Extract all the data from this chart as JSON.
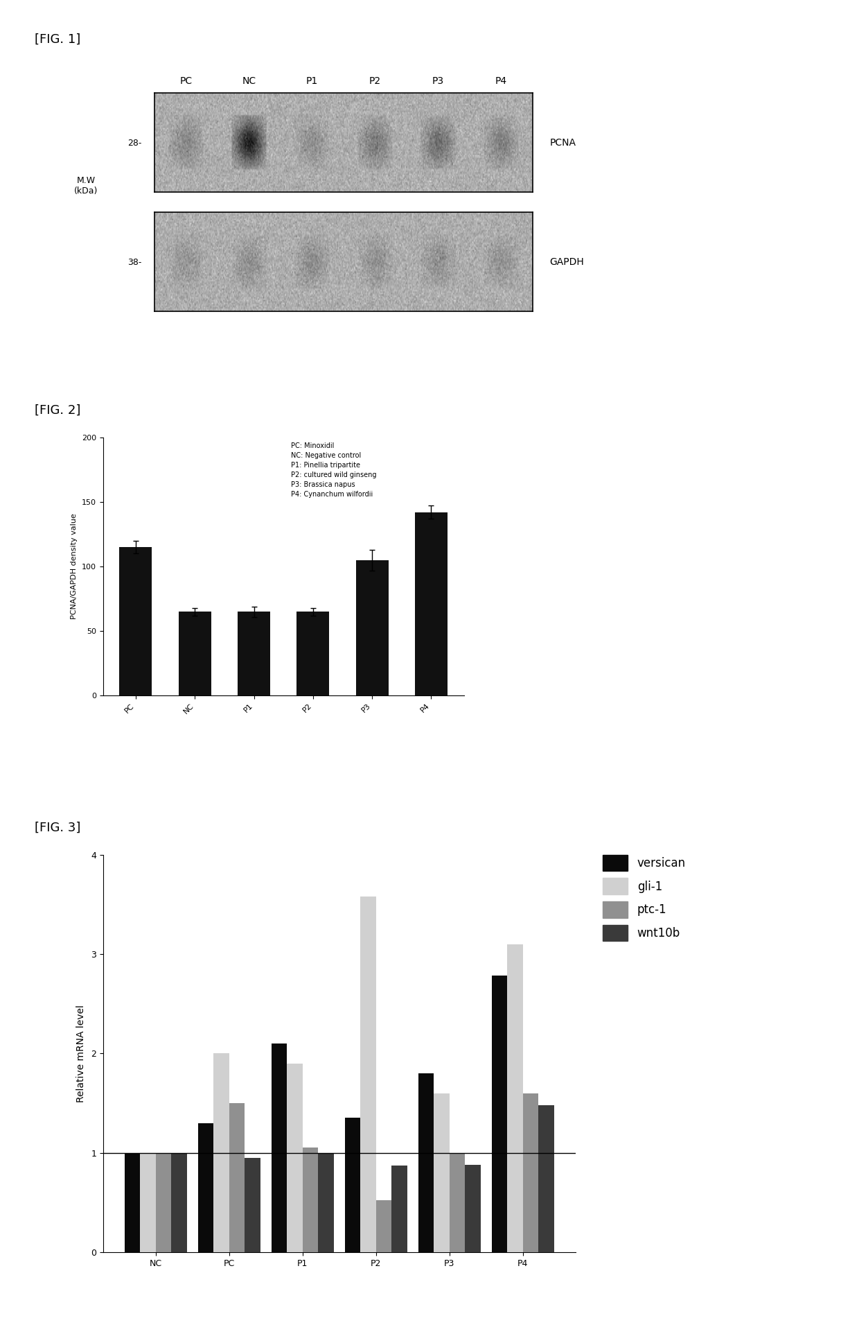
{
  "fig1_label": "[FIG. 1]",
  "fig2_label": "[FIG. 2]",
  "fig3_label": "[FIG. 3]",
  "fig1_lane_labels": [
    "PC",
    "NC",
    "P1",
    "P2",
    "P3",
    "P4"
  ],
  "fig1_mw_label": "M.W\n(kDa)",
  "fig1_pcna_mw": "28-",
  "fig1_gapdh_mw": "38-",
  "fig1_pcna_label": "PCNA",
  "fig1_gapdh_label": "GAPDH",
  "fig1_pcna_bands": [
    0.15,
    0.55,
    0.12,
    0.2,
    0.25,
    0.18
  ],
  "fig1_gapdh_bands": [
    0.1,
    0.12,
    0.13,
    0.11,
    0.12,
    0.11
  ],
  "fig2_categories": [
    "PC",
    "NC",
    "P1",
    "P2",
    "P3",
    "P4"
  ],
  "fig2_values": [
    115,
    65,
    65,
    65,
    105,
    142
  ],
  "fig2_errors": [
    5,
    3,
    4,
    3,
    8,
    5
  ],
  "fig2_ylabel": "PCNA/GAPDH density value",
  "fig2_ylim": [
    0,
    200
  ],
  "fig2_yticks": [
    0,
    50,
    100,
    150,
    200
  ],
  "fig2_bar_color": "#111111",
  "fig2_legend_text": "PC: Minoxidil\nNC: Negative control\nP1: Pinellia tripartite\nP2: cultured wild ginseng\nP3: Brassica napus\nP4: Cynanchum wilfordii",
  "fig3_categories": [
    "NC",
    "PC",
    "P1",
    "P2",
    "P3",
    "P4"
  ],
  "fig3_versican": [
    1.0,
    1.3,
    2.1,
    1.35,
    1.8,
    2.78
  ],
  "fig3_gli1": [
    1.0,
    2.0,
    1.9,
    3.58,
    1.6,
    3.1
  ],
  "fig3_ptc1": [
    1.0,
    1.5,
    1.05,
    0.52,
    1.0,
    1.6
  ],
  "fig3_wnt10b": [
    1.0,
    0.95,
    1.0,
    0.87,
    0.88,
    1.48
  ],
  "fig3_ylabel": "Relative mRNA level",
  "fig3_ylim": [
    0,
    4
  ],
  "fig3_yticks": [
    0,
    1,
    2,
    3,
    4
  ],
  "fig3_hline": 1.0,
  "fig3_colors": {
    "versican": "#0a0a0a",
    "gli1": "#d0d0d0",
    "ptc1": "#909090",
    "wnt10b": "#3a3a3a"
  },
  "fig3_legend_labels": [
    "versican",
    "gli-1",
    "ptc-1",
    "wnt10b"
  ]
}
